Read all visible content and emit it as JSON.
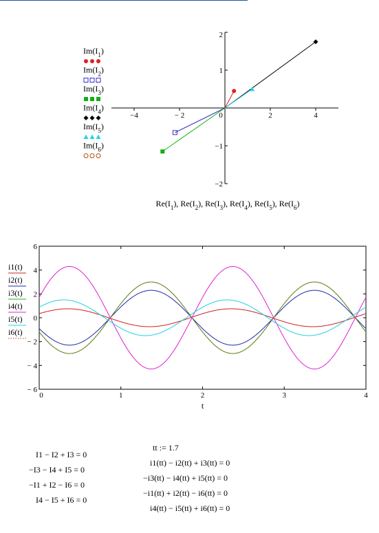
{
  "colors": {
    "I1": "#e02020",
    "I2": "#3030c8",
    "I3": "#10b010",
    "I4": "#000000",
    "I5": "#20d8e8",
    "I6": "#b05010",
    "i1": "#d02020",
    "i2": "#1a2aa8",
    "i3": "#20b020",
    "i4": "#e020d0",
    "i5": "#20d0e0",
    "i6": "#c04010"
  },
  "chart_data": [
    {
      "type": "scatter",
      "title": "",
      "xlabel": "Re(I1), Re(I2), Re(I3), Re(I4), Re(I5), Re(I6)",
      "xlabel_parts": [
        "Re",
        "(",
        "I",
        "1",
        "), ",
        "Re",
        "(",
        "I",
        "2",
        "), ",
        "Re",
        "(",
        "I",
        "3",
        "), ",
        "Re",
        "(",
        "I",
        "4",
        "), ",
        "Re",
        "(",
        "I",
        "5",
        "), ",
        "Re",
        "(",
        "I",
        "6",
        ")"
      ],
      "xlim": [
        -5,
        5
      ],
      "ylim": [
        -2,
        2
      ],
      "x_ticks": [
        -4,
        -2,
        0,
        2,
        4
      ],
      "x_tick_labels": [
        "−4",
        "− 2",
        "0",
        "2",
        "4"
      ],
      "y_ticks": [
        -2,
        -1,
        0,
        1,
        2
      ],
      "y_tick_labels": [
        "−2",
        "−1",
        "0",
        "1",
        "2"
      ],
      "legend_position": "left",
      "series": [
        {
          "name": "Im(I1)",
          "base": "Im",
          "sub": "1",
          "marker": "filled-circle",
          "x": 0.4,
          "y": 0.45
        },
        {
          "name": "Im(I2)",
          "base": "Im",
          "sub": "2",
          "marker": "open-square",
          "x": -2.2,
          "y": -0.65
        },
        {
          "name": "Im(I3)",
          "base": "Im",
          "sub": "3",
          "marker": "filled-square",
          "x": -2.75,
          "y": -1.15
        },
        {
          "name": "Im(I4)",
          "base": "Im",
          "sub": "4",
          "marker": "filled-diamond",
          "x": 4.0,
          "y": 1.75
        },
        {
          "name": "Im(I5)",
          "base": "Im",
          "sub": "5",
          "marker": "filled-triangle",
          "x": 1.2,
          "y": 0.5
        },
        {
          "name": "Im(I6)",
          "base": "Im",
          "sub": "6",
          "marker": "open-circle",
          "x": null,
          "y": null
        }
      ]
    },
    {
      "type": "line",
      "title": "",
      "xlabel": "t",
      "ylabel": "",
      "xlim": [
        0,
        4
      ],
      "ylim": [
        -6,
        6
      ],
      "x_ticks": [
        0,
        1,
        2,
        3,
        4
      ],
      "x_tick_labels": [
        "0",
        "1",
        "2",
        "3",
        "4"
      ],
      "y_ticks": [
        -6,
        -4,
        -2,
        0,
        2,
        4,
        6
      ],
      "y_tick_labels": [
        "− 6",
        "− 4",
        "− 2",
        "0",
        "2",
        "4",
        "6"
      ],
      "grid": false,
      "legend_position": "left",
      "period": 2,
      "series": [
        {
          "name": "i1(t)",
          "amplitude": 0.75,
          "peak_t": 0.35,
          "style": "solid"
        },
        {
          "name": "i2(t)",
          "amplitude": 2.3,
          "peak_t": 1.37,
          "style": "solid"
        },
        {
          "name": "i3(t)",
          "amplitude": 3.0,
          "peak_t": 1.37,
          "style": "solid"
        },
        {
          "name": "i4(t)",
          "amplitude": 4.3,
          "peak_t": 0.37,
          "style": "solid"
        },
        {
          "name": "i5(t)",
          "amplitude": 1.5,
          "peak_t": 0.3,
          "style": "solid"
        },
        {
          "name": "i6(t)",
          "amplitude": 3.0,
          "peak_t": 1.37,
          "style": "dotted"
        }
      ]
    }
  ],
  "equations_left": [
    "I1 − I2 + I3 = 0",
    "−I3 − I4 + I5 = 0",
    "−I1 + I2 − I6 = 0",
    "I4 − I5 + I6 = 0"
  ],
  "equations_right": {
    "definition": "tt := 1.7",
    "lines": [
      "i1(tt) − i2(tt) + i3(tt) = 0",
      "−i3(tt) − i4(tt) + i5(tt) = 0",
      "−i1(tt) + i2(tt) − i6(tt) = 0",
      "i4(tt) − i5(tt) + i6(tt) = 0"
    ]
  }
}
